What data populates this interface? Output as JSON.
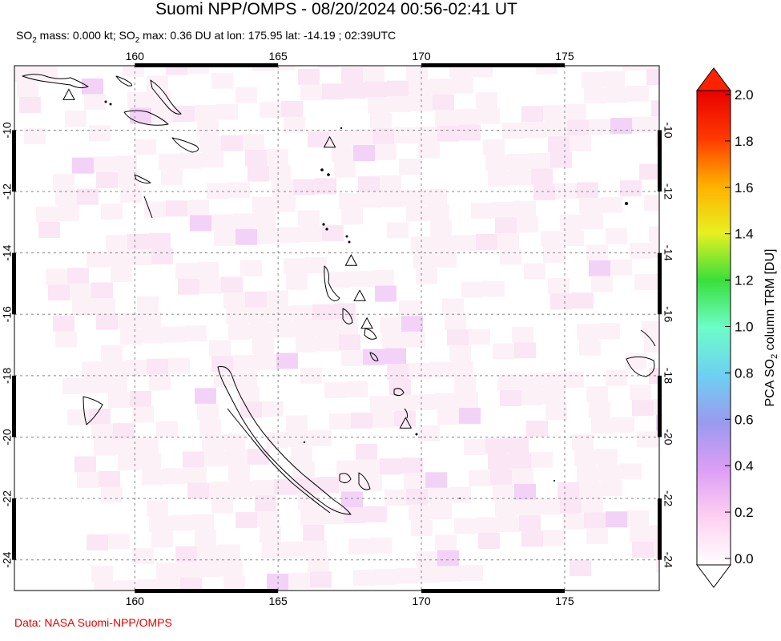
{
  "title": "Suomi NPP/OMPS - 08/20/2024 00:56-02:41 UT",
  "subtitle": {
    "p1": "SO",
    "sub1": "2",
    "p2": " mass: 0.000 kt; SO",
    "sub2": "2",
    "p3": " max: 0.36 DU at lon: 175.95 lat: -14.19 ; 02:39UTC"
  },
  "credit": "Data: NASA Suomi-NPP/OMPS",
  "map": {
    "lon_range": [
      155.8,
      178.3
    ],
    "lat_range": [
      -25.0,
      -7.9
    ],
    "lon_ticks": [
      "160",
      "165",
      "170",
      "175"
    ],
    "lat_ticks": [
      "-10",
      "-12",
      "-14",
      "-16",
      "-18",
      "-20",
      "-22",
      "-24"
    ],
    "volcano_markers": [
      {
        "lon": 157.7,
        "lat": -8.85
      },
      {
        "lon": 166.8,
        "lat": -10.4
      },
      {
        "lon": 167.55,
        "lat": -14.25
      },
      {
        "lon": 167.85,
        "lat": -15.4
      },
      {
        "lon": 168.1,
        "lat": -16.3
      },
      {
        "lon": 169.45,
        "lat": -19.55
      }
    ]
  },
  "colorbar": {
    "label_a": "PCA SO",
    "label_sub": "2",
    "label_b": " column TRM [DU]",
    "ticks": [
      "2.0",
      "1.8",
      "1.6",
      "1.4",
      "1.2",
      "1.0",
      "0.8",
      "0.6",
      "0.4",
      "0.2",
      "0.0"
    ],
    "stops": [
      "#ffffff",
      "#ffd0f2",
      "#dd9ef5",
      "#9a9aef",
      "#6ed0f2",
      "#6dfdc8",
      "#3adf3a",
      "#e8f020",
      "#ffb000",
      "#ff3800",
      "#e80000"
    ],
    "max_color": "#ff2200",
    "min_color": "#ffffff"
  }
}
